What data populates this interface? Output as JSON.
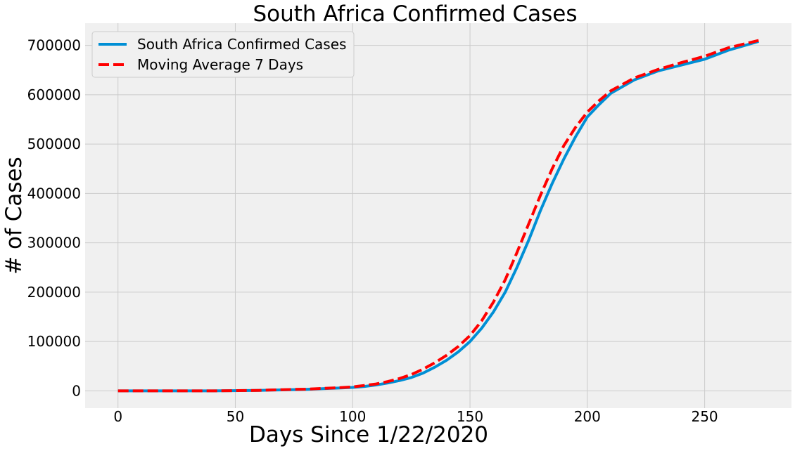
{
  "chart_data": {
    "type": "line",
    "title": "South Africa Confirmed Cases",
    "xlabel": "Days Since 1/22/2020",
    "ylabel": "# of Cases",
    "xlim": [
      -14,
      287
    ],
    "ylim": [
      -35000,
      745000
    ],
    "x_ticks": [
      0,
      50,
      100,
      150,
      200,
      250
    ],
    "y_ticks": [
      0,
      100000,
      200000,
      300000,
      400000,
      500000,
      600000,
      700000
    ],
    "grid": true,
    "legend_position": "top-left",
    "colors": {
      "background": "#f0f0f0",
      "grid": "#cbcbcb",
      "confirmed": "#008fd5",
      "moving_average": "#ff0000"
    },
    "series": [
      {
        "name": "South Africa Confirmed Cases",
        "style": "solid",
        "x": [
          0,
          40,
          60,
          70,
          80,
          90,
          95,
          100,
          105,
          110,
          115,
          120,
          125,
          130,
          135,
          140,
          145,
          150,
          155,
          160,
          165,
          170,
          175,
          180,
          185,
          190,
          195,
          200,
          205,
          210,
          220,
          230,
          240,
          250,
          260,
          273
        ],
        "y": [
          0,
          0,
          1000,
          2000,
          3000,
          5000,
          6000,
          7000,
          9000,
          12000,
          16000,
          21000,
          27000,
          36000,
          48000,
          62000,
          79000,
          100000,
          127000,
          160000,
          200000,
          250000,
          305000,
          365000,
          420000,
          470000,
          515000,
          555000,
          580000,
          603000,
          630000,
          648000,
          660000,
          672000,
          690000,
          708000
        ]
      },
      {
        "name": "Moving Average 7 Days",
        "style": "dashed",
        "x": [
          0,
          40,
          60,
          70,
          80,
          90,
          95,
          100,
          105,
          110,
          115,
          120,
          125,
          130,
          135,
          140,
          145,
          150,
          155,
          160,
          165,
          170,
          175,
          180,
          185,
          190,
          195,
          200,
          205,
          210,
          220,
          230,
          240,
          250,
          260,
          273
        ],
        "y": [
          0,
          0,
          1000,
          2500,
          3500,
          5500,
          6500,
          8000,
          11000,
          14000,
          19000,
          25000,
          33000,
          44000,
          57000,
          72000,
          90000,
          112000,
          142000,
          180000,
          225000,
          280000,
          338000,
          396000,
          450000,
          497000,
          534000,
          565000,
          588000,
          608000,
          634000,
          651000,
          665000,
          678000,
          695000,
          710000
        ]
      }
    ]
  }
}
